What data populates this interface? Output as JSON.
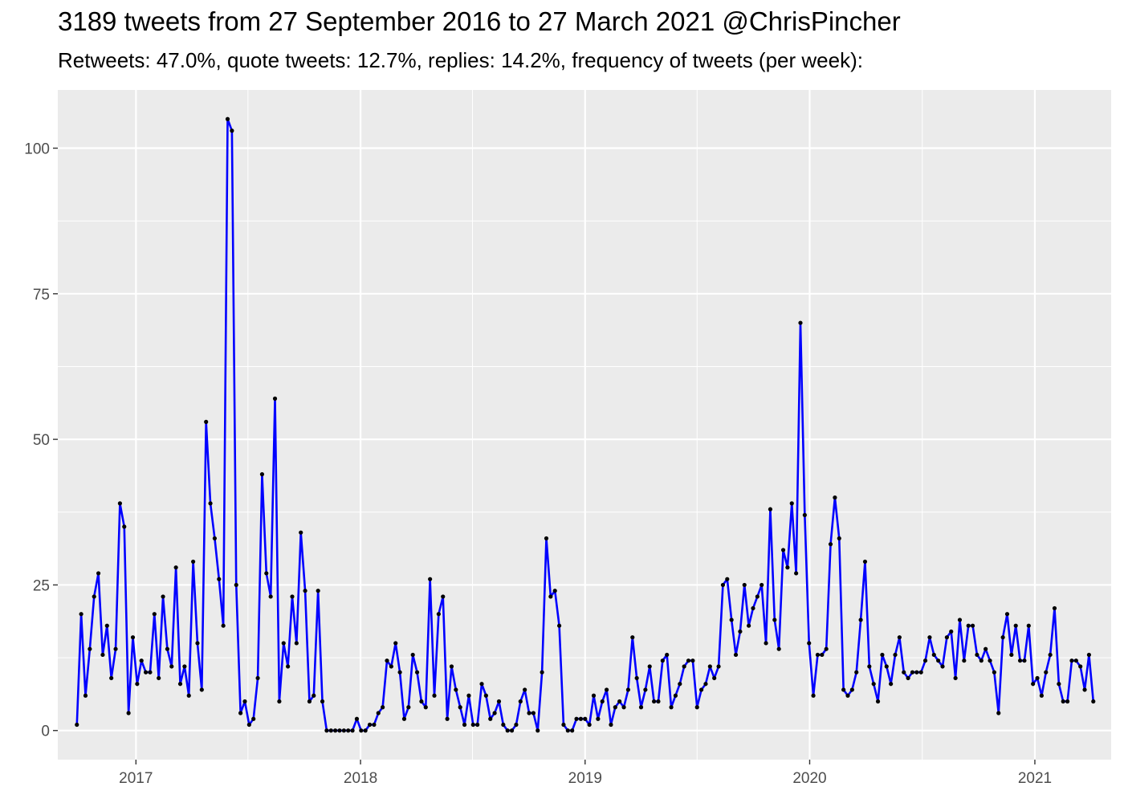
{
  "title": "3189 tweets from 27 September 2016 to 27 March 2021 @ChrisPincher",
  "subtitle": "Retweets: 47.0%, quote tweets: 12.7%, replies: 14.2%, frequency of tweets (per week):",
  "colors": {
    "panel": "#ebebeb",
    "grid": "#ffffff",
    "line": "#0000ff",
    "point": "#000000",
    "tick_text": "#4d4d4d"
  },
  "chart_data": {
    "type": "line",
    "title": "3189 tweets from 27 September 2016 to 27 March 2021 @ChrisPincher",
    "subtitle": "Retweets: 47.0%, quote tweets: 12.7%, replies: 14.2%, frequency of tweets (per week):",
    "xlabel": "",
    "ylabel": "",
    "x_start": "2016-09-27",
    "x_step": "1 week",
    "xlim": [
      "2016-08-27",
      "2021-05-05"
    ],
    "ylim": [
      -5,
      110
    ],
    "x_ticks": [
      "2017",
      "2018",
      "2019",
      "2020",
      "2021"
    ],
    "y_ticks": [
      0,
      25,
      50,
      75,
      100
    ],
    "grid": true,
    "markers": true,
    "series": [
      {
        "values": [
          1,
          20,
          6,
          14,
          23,
          27,
          13,
          18,
          9,
          14,
          39,
          35,
          3,
          16,
          8,
          12,
          10,
          10,
          20,
          9,
          23,
          14,
          11,
          28,
          8,
          11,
          6,
          29,
          15,
          7,
          53,
          39,
          33,
          26,
          18,
          105,
          103,
          25,
          3,
          5,
          1,
          2,
          9,
          44,
          27,
          23,
          57,
          5,
          15,
          11,
          23,
          15,
          34,
          24,
          5,
          6,
          24,
          5,
          0,
          0,
          0,
          0,
          0,
          0,
          0,
          2,
          0,
          0,
          1,
          1,
          3,
          4,
          12,
          11,
          15,
          10,
          2,
          4,
          13,
          10,
          5,
          4,
          26,
          6,
          20,
          23,
          2,
          11,
          7,
          4,
          1,
          6,
          1,
          1,
          8,
          6,
          2,
          3,
          5,
          1,
          0,
          0,
          1,
          5,
          7,
          3,
          3,
          0,
          10,
          33,
          23,
          24,
          18,
          1,
          0,
          0,
          2,
          2,
          2,
          1,
          6,
          2,
          5,
          7,
          1,
          4,
          5,
          4,
          7,
          16,
          9,
          4,
          7,
          11,
          5,
          5,
          12,
          13,
          4,
          6,
          8,
          11,
          12,
          12,
          4,
          7,
          8,
          11,
          9,
          11,
          25,
          26,
          19,
          13,
          17,
          25,
          18,
          21,
          23,
          25,
          15,
          38,
          19,
          14,
          31,
          28,
          39,
          27,
          70,
          37,
          15,
          6,
          13,
          13,
          14,
          32,
          40,
          33,
          7,
          6,
          7,
          10,
          19,
          29,
          11,
          8,
          5,
          13,
          11,
          8,
          13,
          16,
          10,
          9,
          10,
          10,
          10,
          12,
          16,
          13,
          12,
          11,
          16,
          17,
          9,
          19,
          12,
          18,
          18,
          13,
          12,
          14,
          12,
          10,
          3,
          16,
          20,
          13,
          18,
          12,
          12,
          18,
          8,
          9,
          6,
          10,
          13,
          21,
          8,
          5,
          5,
          12,
          12,
          11,
          7,
          13,
          5
        ]
      }
    ]
  }
}
